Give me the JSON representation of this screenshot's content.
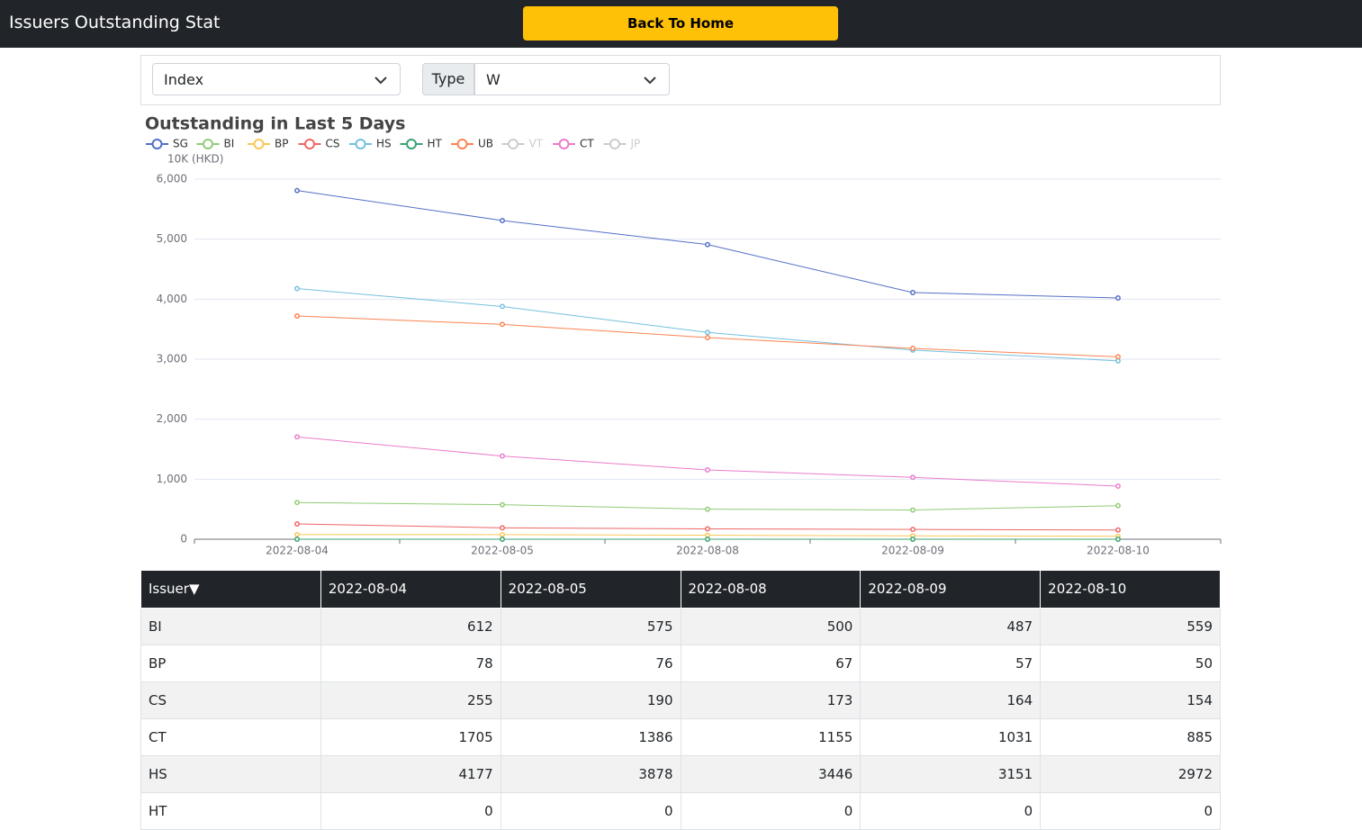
{
  "header": {
    "title": "Issuers Outstanding Stat",
    "button": "Back To Home"
  },
  "controls": {
    "market": "Index",
    "type_label": "Type",
    "type_value": "W"
  },
  "chart_data": {
    "type": "line",
    "title": "Outstanding in Last 5 Days",
    "y_axis_label": "10K (HKD)",
    "categories": [
      "2022-08-04",
      "2022-08-05",
      "2022-08-08",
      "2022-08-09",
      "2022-08-10"
    ],
    "ylim": [
      0,
      6000
    ],
    "yticks": [
      0,
      {
        "value": 1000,
        "label": "1,000"
      },
      {
        "value": 2000,
        "label": "2,000"
      },
      {
        "value": 3000,
        "label": "3,000"
      },
      {
        "value": 4000,
        "label": "4,000"
      },
      {
        "value": 5000,
        "label": "5,000"
      },
      {
        "value": 6000,
        "label": "6,000"
      }
    ],
    "grid": true,
    "legend": "top-left",
    "series": [
      {
        "name": "SG",
        "color": "#5470c6",
        "selected": true,
        "values": [
          5810,
          5310,
          4910,
          4110,
          4020
        ]
      },
      {
        "name": "BI",
        "color": "#91cc75",
        "selected": true,
        "values": [
          612,
          575,
          500,
          487,
          559
        ]
      },
      {
        "name": "BP",
        "color": "#fac858",
        "selected": true,
        "values": [
          78,
          76,
          67,
          57,
          50
        ]
      },
      {
        "name": "CS",
        "color": "#ee6666",
        "selected": true,
        "values": [
          255,
          190,
          173,
          164,
          154
        ]
      },
      {
        "name": "HS",
        "color": "#73c0de",
        "selected": true,
        "values": [
          4177,
          3878,
          3446,
          3151,
          2972
        ]
      },
      {
        "name": "HT",
        "color": "#3ba272",
        "selected": true,
        "values": [
          0,
          0,
          0,
          0,
          0
        ]
      },
      {
        "name": "UB",
        "color": "#fc8452",
        "selected": true,
        "values": [
          3720,
          3580,
          3360,
          3180,
          3040
        ]
      },
      {
        "name": "VT",
        "color": "#cccccc",
        "selected": false,
        "values": [
          null,
          null,
          null,
          null,
          null
        ]
      },
      {
        "name": "CT",
        "color": "#ea7ccc",
        "selected": true,
        "values": [
          1705,
          1386,
          1155,
          1031,
          885
        ]
      },
      {
        "name": "JP",
        "color": "#cccccc",
        "selected": false,
        "values": [
          null,
          null,
          null,
          null,
          null
        ]
      }
    ]
  },
  "table": {
    "header": [
      "Issuer▼",
      "2022-08-04",
      "2022-08-05",
      "2022-08-08",
      "2022-08-09",
      "2022-08-10"
    ],
    "rows": [
      [
        "BI",
        612,
        575,
        500,
        487,
        559
      ],
      [
        "BP",
        78,
        76,
        67,
        57,
        50
      ],
      [
        "CS",
        255,
        190,
        173,
        164,
        154
      ],
      [
        "CT",
        1705,
        1386,
        1155,
        1031,
        885
      ],
      [
        "HS",
        4177,
        3878,
        3446,
        3151,
        2972
      ],
      [
        "HT",
        0,
        0,
        0,
        0,
        0
      ]
    ]
  }
}
